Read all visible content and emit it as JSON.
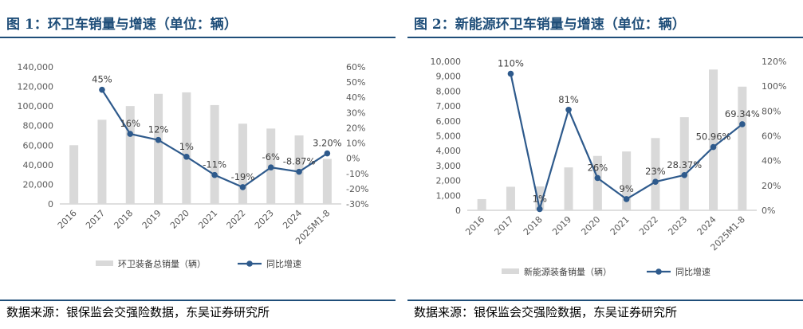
{
  "chart_data": [
    {
      "type": "bar",
      "title": "图 1：环卫车销量与增速（单位：辆）",
      "source": "数据来源：银保监会交强险数据，东吴证券研究所",
      "categories": [
        "2016",
        "2017",
        "2018",
        "2019",
        "2020",
        "2021",
        "2022",
        "2023",
        "2024",
        "2025M1-8"
      ],
      "series": [
        {
          "name": "环卫装备总销量（辆）",
          "kind": "bar",
          "axis": "left",
          "color": "#d9d9d9",
          "values": [
            60000,
            86000,
            100000,
            112500,
            114000,
            101000,
            82000,
            77000,
            70000,
            46000
          ]
        },
        {
          "name": "同比增速",
          "kind": "line",
          "axis": "right",
          "color": "#2e5a8c",
          "values": [
            null,
            45,
            16,
            12,
            1,
            -11,
            -19,
            -6,
            -8.87,
            3.2
          ],
          "labels": [
            "",
            "45%",
            "16%",
            "12%",
            "1%",
            "-11%",
            "-19%",
            "-6%",
            "-8.87%",
            "3.20%"
          ]
        }
      ],
      "yticks_left": [
        "0",
        "20,000",
        "40,000",
        "60,000",
        "80,000",
        "100,000",
        "120,000",
        "140,000"
      ],
      "yticks_right": [
        "-30%",
        "-20%",
        "-10%",
        "0%",
        "10%",
        "20%",
        "30%",
        "40%",
        "50%",
        "60%"
      ],
      "ylim_left": [
        0,
        140000
      ],
      "ylim_right": [
        -30,
        60
      ],
      "legend_position": "bottom"
    },
    {
      "type": "bar",
      "title": "图 2：新能源环卫车销量与增速（单位：辆）",
      "source": "数据来源：银保监会交强险数据，东吴证券研究所",
      "categories": [
        "2016",
        "2017",
        "2018",
        "2019",
        "2020",
        "2021",
        "2022",
        "2023",
        "2024",
        "2025M1-8"
      ],
      "series": [
        {
          "name": "新能源装备销量（辆）",
          "kind": "bar",
          "axis": "left",
          "color": "#d9d9d9",
          "values": [
            750,
            1580,
            1600,
            2880,
            3650,
            3950,
            4850,
            6250,
            9450,
            8300
          ]
        },
        {
          "name": "同比增速",
          "kind": "line",
          "axis": "right",
          "color": "#2e5a8c",
          "values": [
            null,
            110,
            1,
            81,
            26,
            9,
            23,
            28.37,
            50.96,
            69.34
          ],
          "labels": [
            "",
            "110%",
            "1%",
            "81%",
            "26%",
            "9%",
            "23%",
            "28.37%",
            "50.96%",
            "69.34%"
          ]
        }
      ],
      "yticks_left": [
        "0",
        "1,000",
        "2,000",
        "3,000",
        "4,000",
        "5,000",
        "6,000",
        "7,000",
        "8,000",
        "9,000",
        "10,000"
      ],
      "yticks_right": [
        "0%",
        "20%",
        "40%",
        "60%",
        "80%",
        "100%",
        "120%"
      ],
      "ylim_left": [
        0,
        10000
      ],
      "ylim_right": [
        0,
        120
      ],
      "legend_position": "bottom"
    }
  ]
}
